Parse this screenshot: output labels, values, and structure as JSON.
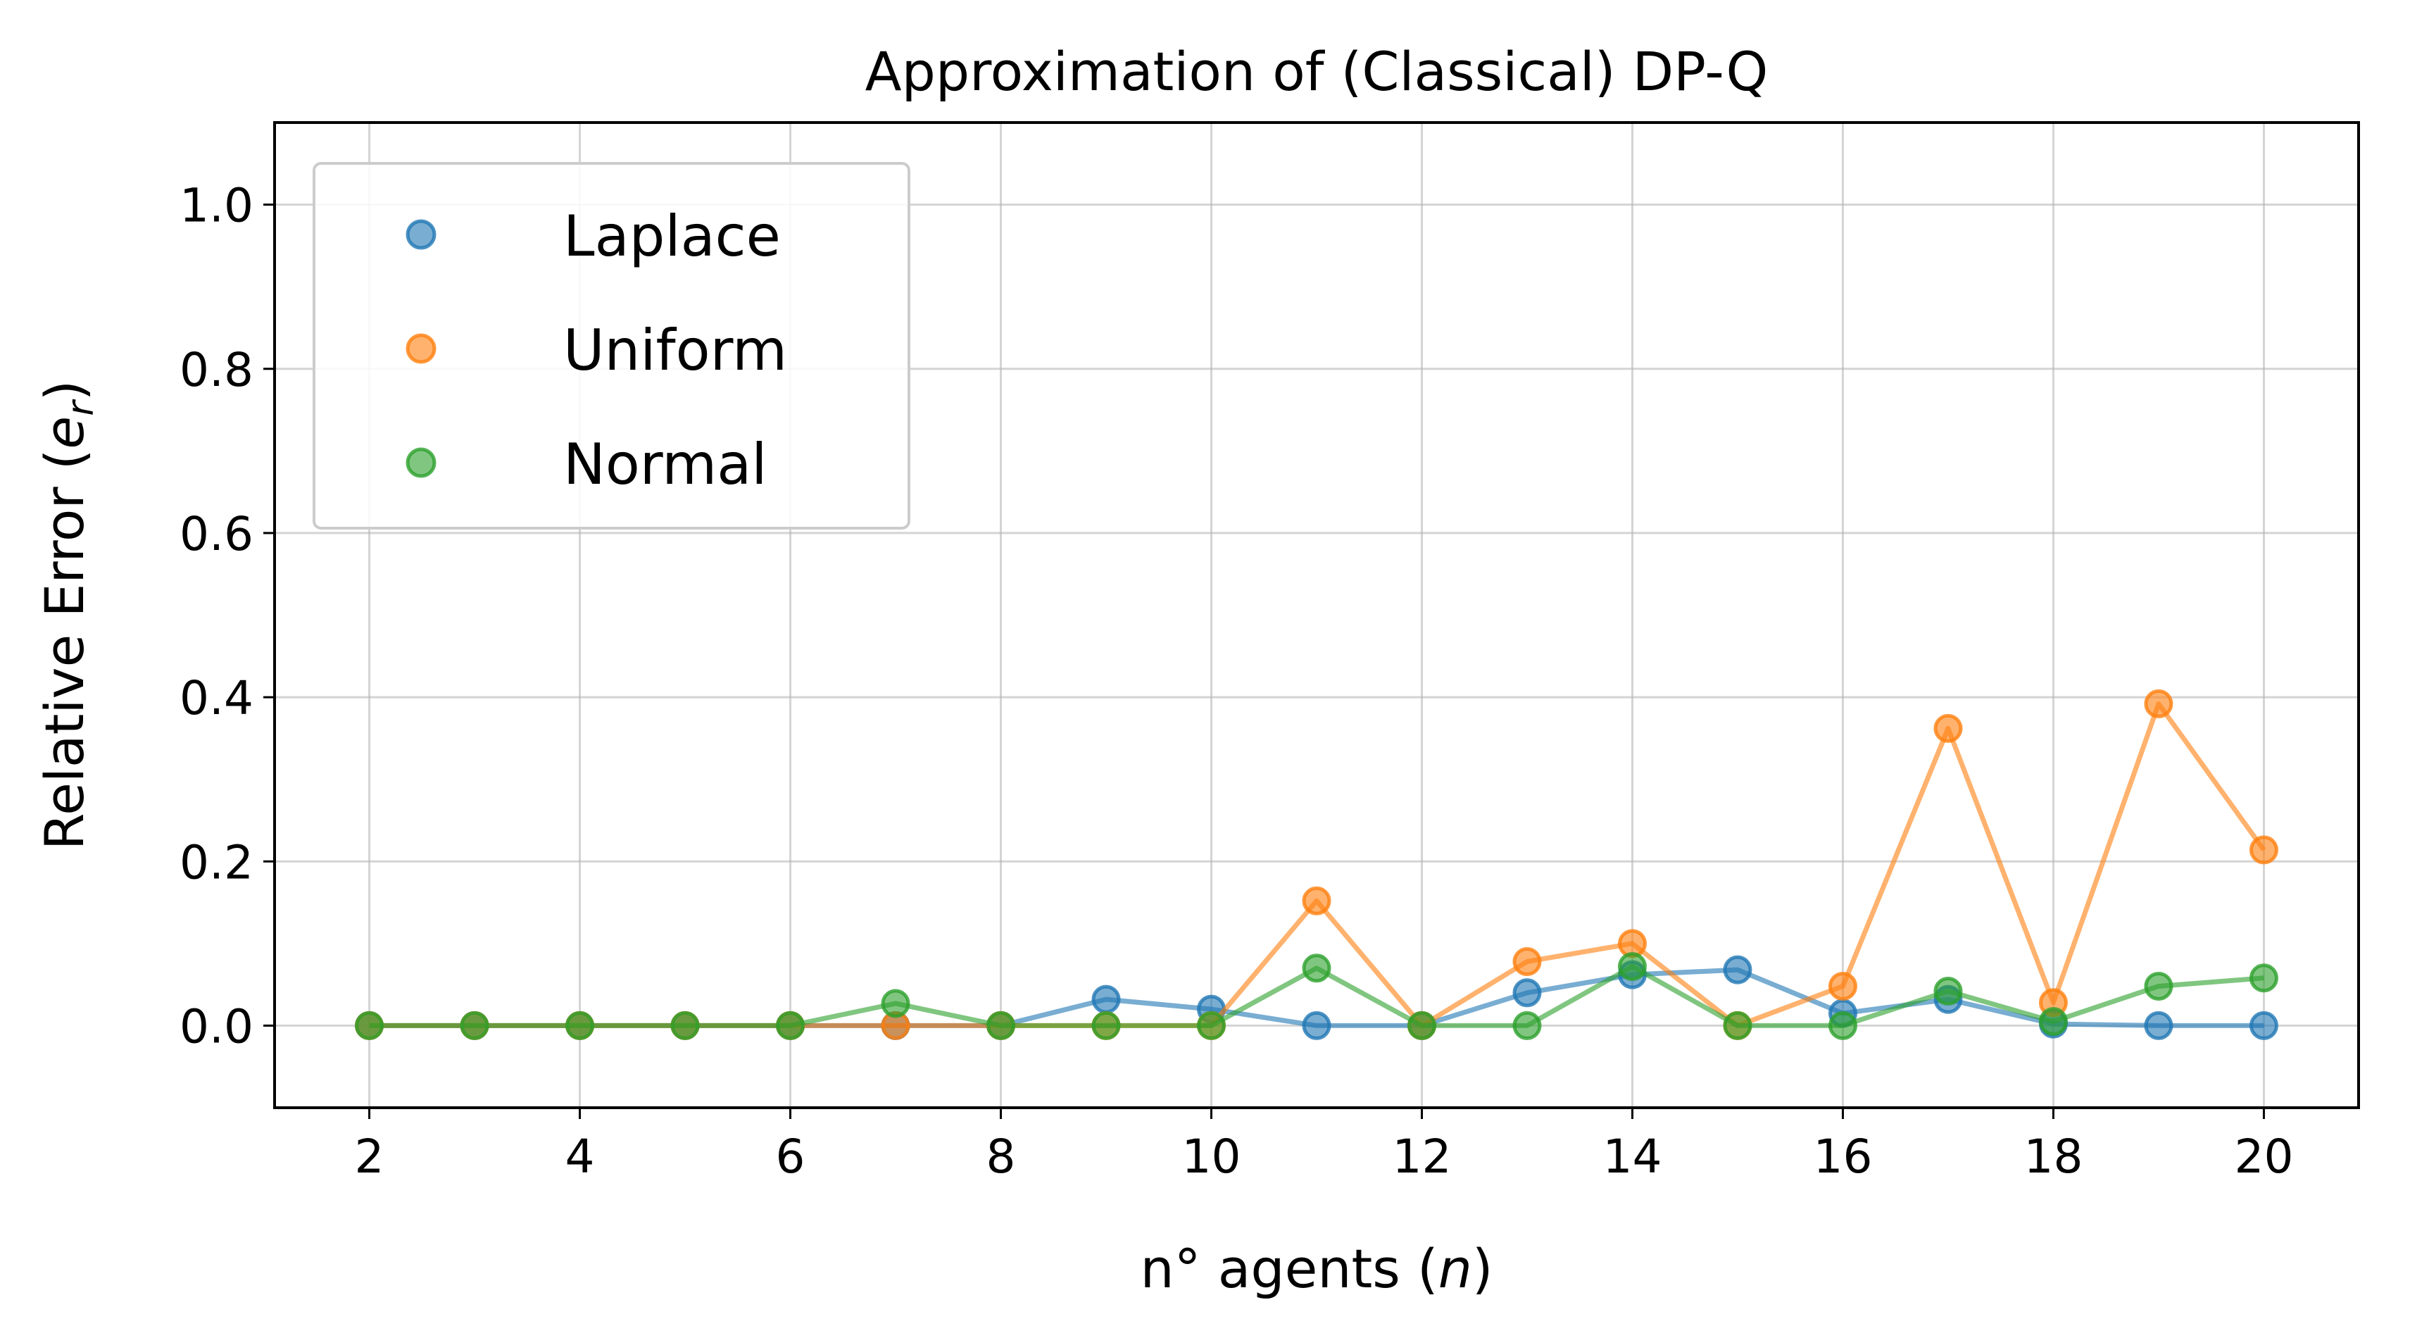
{
  "chart_data": {
    "type": "line",
    "title": "Approximation of (Classical) DP-Q",
    "xlabel": "n° agents (n)",
    "xlabel_prefix": "n° agents (",
    "xlabel_var": "n",
    "xlabel_suffix": ")",
    "ylabel": "Relative Error (e_r)",
    "ylabel_prefix": "Relative Error (",
    "ylabel_var": "e",
    "ylabel_sub": "r",
    "ylabel_suffix": ")",
    "xlim": [
      1.1,
      20.9
    ],
    "ylim": [
      -0.1,
      1.1
    ],
    "xticks": [
      2,
      4,
      6,
      8,
      10,
      12,
      14,
      16,
      18,
      20
    ],
    "xtick_labels": [
      "2",
      "4",
      "6",
      "8",
      "10",
      "12",
      "14",
      "16",
      "18",
      "20"
    ],
    "yticks": [
      0.0,
      0.2,
      0.4,
      0.6,
      0.8,
      1.0
    ],
    "ytick_labels": [
      "0.0",
      "0.2",
      "0.4",
      "0.6",
      "0.8",
      "1.0"
    ],
    "grid": true,
    "legend_position": "top-left",
    "x": [
      2,
      3,
      4,
      5,
      6,
      7,
      8,
      9,
      10,
      11,
      12,
      13,
      14,
      15,
      16,
      17,
      18,
      19,
      20
    ],
    "series": [
      {
        "name": "Laplace",
        "color": "#1f77b4",
        "values": [
          0,
          0,
          0,
          0,
          0,
          0,
          0,
          0.032,
          0.02,
          0,
          0,
          0.04,
          0.062,
          0.068,
          0.015,
          0.032,
          0.002,
          0,
          0
        ]
      },
      {
        "name": "Uniform",
        "color": "#ff7f0e",
        "values": [
          0,
          0,
          0,
          0,
          0,
          0,
          0,
          0,
          0,
          0.152,
          0,
          0.078,
          0.1,
          0,
          0.048,
          0.362,
          0.028,
          0.392,
          0.214
        ]
      },
      {
        "name": "Normal",
        "color": "#2ca02c",
        "values": [
          0,
          0,
          0,
          0,
          0,
          0.027,
          0,
          0,
          0,
          0.07,
          0,
          0,
          0.072,
          0,
          0,
          0.042,
          0.005,
          0.048,
          0.058
        ]
      }
    ]
  }
}
